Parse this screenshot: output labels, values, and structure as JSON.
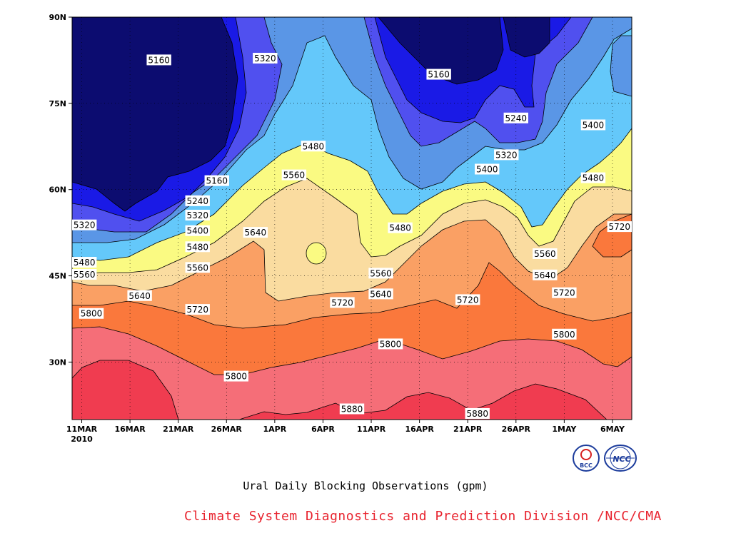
{
  "chart_data": {
    "type": "contour",
    "title": "Ural Daily Blocking Observations (gpm)",
    "xlabel": "",
    "ylabel": "",
    "x_ticks": [
      "11MAR\n2010",
      "16MAR",
      "21MAR",
      "26MAR",
      "1APR",
      "6APR",
      "11APR",
      "16APR",
      "21APR",
      "26APR",
      "1MAY",
      "6MAY"
    ],
    "y_ticks": [
      "30N",
      "45N",
      "60N",
      "75N",
      "90N"
    ],
    "y_values": [
      30,
      45,
      60,
      75,
      90
    ],
    "ylim": [
      20,
      90
    ],
    "x_range": [
      "2010-03-10",
      "2010-05-07"
    ],
    "contour_levels": [
      5160,
      5240,
      5320,
      5400,
      5480,
      5560,
      5640,
      5720,
      5800,
      5880
    ],
    "level_colors": [
      "#0c0c70",
      "#1a1ae6",
      "#5050ef",
      "#5a96e6",
      "#64c8fa",
      "#fafa82",
      "#fadca0",
      "#faa064",
      "#fa783c",
      "#f56e78",
      "#f03c50"
    ],
    "contour_labels": [
      {
        "value": 5160,
        "x": "2010-03-19",
        "y": 82.5
      },
      {
        "value": 5320,
        "x": "2010-03-30",
        "y": 82.8
      },
      {
        "value": 5160,
        "x": "2010-04-17",
        "y": 80.0
      },
      {
        "value": 5240,
        "x": "2010-04-25",
        "y": 72.4
      },
      {
        "value": 5400,
        "x": "2010-05-03",
        "y": 71.2
      },
      {
        "value": 5320,
        "x": "2010-04-24",
        "y": 66.0
      },
      {
        "value": 5400,
        "x": "2010-04-22",
        "y": 63.5
      },
      {
        "value": 5480,
        "x": "2010-04-04",
        "y": 67.5
      },
      {
        "value": 5480,
        "x": "2010-05-03",
        "y": 62.0
      },
      {
        "value": 5560,
        "x": "2010-04-02",
        "y": 62.5
      },
      {
        "value": 5160,
        "x": "2010-03-25",
        "y": 61.5
      },
      {
        "value": 5240,
        "x": "2010-03-23",
        "y": 58.0
      },
      {
        "value": 5320,
        "x": "2010-03-23",
        "y": 55.5
      },
      {
        "value": 5320,
        "x": "2010-03-11",
        "y": 53.8
      },
      {
        "value": 5400,
        "x": "2010-03-23",
        "y": 52.8
      },
      {
        "value": 5480,
        "x": "2010-03-23",
        "y": 50.0
      },
      {
        "value": 5480,
        "x": "2010-03-10",
        "y": 47.3
      },
      {
        "value": 5560,
        "x": "2010-03-23",
        "y": 46.4
      },
      {
        "value": 5560,
        "x": "2010-03-10",
        "y": 45.2
      },
      {
        "value": 5640,
        "x": "2010-03-29",
        "y": 52.5
      },
      {
        "value": 5480,
        "x": "2010-04-13",
        "y": 53.3
      },
      {
        "value": 5560,
        "x": "2010-04-11",
        "y": 45.4
      },
      {
        "value": 5640,
        "x": "2010-04-11",
        "y": 41.8
      },
      {
        "value": 5720,
        "x": "2010-04-07",
        "y": 40.3
      },
      {
        "value": 5720,
        "x": "2010-04-20",
        "y": 40.8
      },
      {
        "value": 5560,
        "x": "2010-04-28",
        "y": 48.8
      },
      {
        "value": 5640,
        "x": "2010-04-28",
        "y": 45.1
      },
      {
        "value": 5720,
        "x": "2010-04-30",
        "y": 42.0
      },
      {
        "value": 5720,
        "x": "2010-05-06",
        "y": 53.5
      },
      {
        "value": 5640,
        "x": "2010-03-17",
        "y": 41.5
      },
      {
        "value": 5720,
        "x": "2010-03-23",
        "y": 39.1
      },
      {
        "value": 5800,
        "x": "2010-03-12",
        "y": 38.4
      },
      {
        "value": 5800,
        "x": "2010-04-12",
        "y": 33.1
      },
      {
        "value": 5800,
        "x": "2010-04-30",
        "y": 34.8
      },
      {
        "value": 5800,
        "x": "2010-03-27",
        "y": 27.5
      },
      {
        "value": 5880,
        "x": "2010-04-08",
        "y": 21.8
      },
      {
        "value": 5880,
        "x": "2010-04-21",
        "y": 21.0
      }
    ]
  },
  "footer": {
    "caption": "Ural Daily Blocking Observations (gpm)",
    "credit": "Climate System Diagnostics and Prediction Division /NCC/CMA"
  },
  "logos": {
    "bcc_text": "BCC",
    "ncc_text": "NCC"
  }
}
